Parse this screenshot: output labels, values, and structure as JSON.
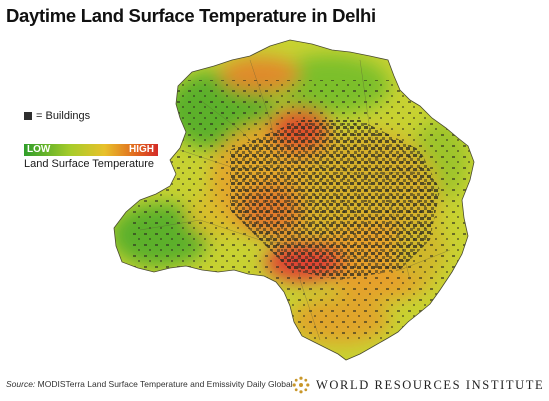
{
  "title": "Daytime Land Surface Temperature in Delhi",
  "legend": {
    "buildings_label": "= Buildings",
    "low_label": "LOW",
    "high_label": "HIGH",
    "scale_caption": "Land Surface Temperature",
    "gradient_colors": [
      "#2f9e2a",
      "#a8cc2a",
      "#e8c12a",
      "#e0621e",
      "#d42b28"
    ]
  },
  "source": {
    "prefix": "Source:",
    "text": "MODISTerra Land Surface Temperature and Emissivity Daily Global"
  },
  "logo": {
    "text": "WORLD RESOURCES INSTITUTE",
    "icon": "wri-logo-icon"
  },
  "colors": {
    "low": "#2f9e2a",
    "mid": "#e8c12a",
    "high": "#d42b28",
    "buildings": "#2e2e2e"
  }
}
